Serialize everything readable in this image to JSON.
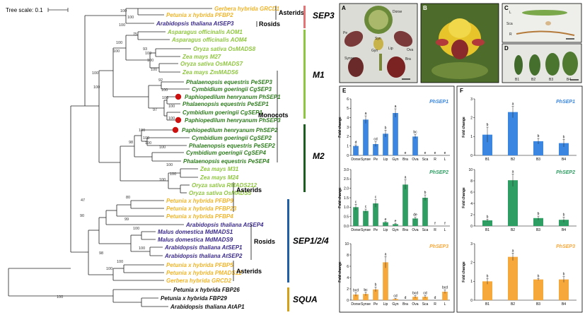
{
  "tree": {
    "scale_label": "Tree scale: 0.1",
    "taxa": [
      {
        "name": "Gerbera hybrida GRCD1",
        "group": "asterid"
      },
      {
        "name": "Petunia x hybrida PFBP2",
        "group": "asterid"
      },
      {
        "name": "Arabidopsis thaliana AtSEP3",
        "group": "rosid"
      },
      {
        "name": "Asparagus officinalis AOM1",
        "group": "monocot"
      },
      {
        "name": "Asparagus officinalis AOM4",
        "group": "monocot"
      },
      {
        "name": "Oryza sativa OsMADS8",
        "group": "monocot"
      },
      {
        "name": "Zea mays M27",
        "group": "monocot"
      },
      {
        "name": "Oryza sativa OsMADS7",
        "group": "monocot"
      },
      {
        "name": "Zea mays ZmMADS6",
        "group": "monocot"
      },
      {
        "name": "Phalaenopsis equestris PeSEP3",
        "group": "orchid"
      },
      {
        "name": "Cymbidium goeringii CgSEP3",
        "group": "orchid"
      },
      {
        "name": "Paphiopedilum henryanum PhSEP1",
        "group": "orchid",
        "highlight": true
      },
      {
        "name": "Phalaenopsis equestris PeSEP1",
        "group": "orchid"
      },
      {
        "name": "Cymbidium goeringii CgSEP1",
        "group": "orchid"
      },
      {
        "name": "Paphiopedilum henryanum PhSEP3",
        "group": "orchid",
        "highlight": true
      },
      {
        "name": "Paphiopedilum henryanum PhSEP2",
        "group": "orchid",
        "highlight": true
      },
      {
        "name": "Cymbidium goeringii CgSEP2",
        "group": "orchid"
      },
      {
        "name": "Phalaenopsis equestris PeSEP2",
        "group": "orchid"
      },
      {
        "name": "Cymbidium goeringii CgSEP4",
        "group": "orchid"
      },
      {
        "name": "Phalaenopsis equestris PeSEP4",
        "group": "orchid"
      },
      {
        "name": "Zea mays M31",
        "group": "monocot"
      },
      {
        "name": "Zea mays M24",
        "group": "monocot"
      },
      {
        "name": "Oryza sativa RMADS212",
        "group": "monocot"
      },
      {
        "name": "Oryza sativa OsMADS5",
        "group": "monocot"
      },
      {
        "name": "Petunia x hybrida PFBP9",
        "group": "asterid"
      },
      {
        "name": "Petunia x hybrida PFBP23",
        "group": "asterid"
      },
      {
        "name": "Petunia x hybrida PFBP4",
        "group": "asterid"
      },
      {
        "name": "Arabidopsis thaliana AtSEP4",
        "group": "rosid"
      },
      {
        "name": "Malus domestica MdMADS1",
        "group": "rosid"
      },
      {
        "name": "Malus domestica MdMADS9",
        "group": "rosid"
      },
      {
        "name": "Arabidopsis thaliana AtSEP1",
        "group": "rosid"
      },
      {
        "name": "Arabidopsis thaliana AtSEP2",
        "group": "rosid"
      },
      {
        "name": "Petunia x hybrida PFBP5",
        "group": "asterid"
      },
      {
        "name": "Petunia x hybrida PMADS12",
        "group": "asterid"
      },
      {
        "name": "Gerbera hybrida GRCD2",
        "group": "asterid"
      },
      {
        "name": "Petunia x hybrida FBP26",
        "group": "outgroup"
      },
      {
        "name": "Petunia x hybrida FBP29",
        "group": "outgroup"
      },
      {
        "name": "Arabidopsis thaliana AtAP1",
        "group": "outgroup"
      }
    ],
    "bootstrap": [
      "100",
      "100",
      "100",
      "75",
      "93",
      "100",
      "100",
      "100",
      "100",
      "92",
      "100",
      "100",
      "100",
      "97",
      "100",
      "100",
      "100",
      "100",
      "98",
      "100",
      "100",
      "100",
      "100",
      "100",
      "100",
      "100",
      "47",
      "80",
      "99",
      "100",
      "100",
      "100",
      "100",
      "90",
      "98",
      "100"
    ],
    "brackets": {
      "asterids1": "Asterids",
      "rosids1": "Rosids",
      "monocots": "Monocots",
      "asterids2": "Asterids",
      "rosids2": "Rosids",
      "asterids3": "Asterids"
    },
    "clades": {
      "sep3": "SEP3",
      "m1": "M1",
      "m2": "M2",
      "sep124": "SEP1/2/4",
      "squa": "SQUA"
    },
    "colors": {
      "asterid": "#f0b429",
      "rosid": "#3b2a8c",
      "monocot": "#8fc640",
      "orchid": "#2e7d1e",
      "outgroup": "#111111",
      "highlight": "#cc1111",
      "sep3": "#e57373",
      "m1": "#8fc640",
      "m2": "#1b5e20",
      "sep124": "#1f5fa8",
      "squa": "#d4a017"
    }
  },
  "photos": {
    "A": {
      "panel": "A",
      "labels": [
        "Dorse",
        "Pe",
        "Syn",
        "Gyn",
        "Lip",
        "Ova",
        "Bra",
        "Synse"
      ]
    },
    "B": {
      "panel": "B"
    },
    "C": {
      "panel": "C",
      "labels": [
        "L",
        "Sca",
        "R"
      ]
    },
    "D": {
      "panel": "D",
      "labels": [
        "B1",
        "B2",
        "B3",
        "B4"
      ]
    }
  },
  "panel_E": "E",
  "panel_F": "F",
  "chart_data": [
    {
      "panel": "E",
      "type": "bar",
      "gene": "PhSEP1",
      "ylabel": "Fold change",
      "color": "#3a86e0",
      "categories": [
        "Dorse",
        "Synse",
        "Pe",
        "Lip",
        "Gyn",
        "Bra",
        "Ova",
        "Sca",
        "R",
        "L"
      ],
      "values": [
        1.0,
        3.8,
        1.2,
        2.3,
        4.5,
        0.0,
        2.0,
        0.0,
        0.0,
        0.0
      ],
      "errors": [
        0.12,
        0.4,
        0.25,
        0.35,
        0.45,
        0,
        0.2,
        0,
        0,
        0
      ],
      "letters": [
        "d",
        "a",
        "cd",
        "b",
        "a",
        "e",
        "bc",
        "e",
        "e",
        "e"
      ],
      "ylim": [
        0,
        6
      ],
      "yticks": [
        "0",
        "1",
        "2",
        "3",
        "4",
        "5",
        "6"
      ]
    },
    {
      "panel": "E",
      "type": "bar",
      "gene": "PhSEP2",
      "ylabel": "Fold change",
      "color": "#2e9e62",
      "categories": [
        "Dorse",
        "Synse",
        "Pe",
        "Lip",
        "Gyn",
        "Bra",
        "Ova",
        "Sca",
        "R",
        "L"
      ],
      "values": [
        1.0,
        0.8,
        1.2,
        0.2,
        0.1,
        2.2,
        0.4,
        1.5,
        0.0,
        0.0
      ],
      "errors": [
        0.15,
        0.1,
        0.2,
        0.03,
        0.03,
        0.25,
        0.06,
        0.15,
        0,
        0
      ],
      "letters": [
        "c",
        "c",
        "c",
        "e",
        "e",
        "a",
        "de",
        "b",
        "f",
        "f"
      ],
      "ylim": [
        0,
        3
      ],
      "yticks": [
        "0.0",
        "0.5",
        "1.0",
        "1.5",
        "2.0",
        "2.5",
        "3.0"
      ]
    },
    {
      "panel": "E",
      "type": "bar",
      "gene": "PhSEP3",
      "ylabel": "Fold change",
      "color": "#f7a83a",
      "categories": [
        "Dorse",
        "Synse",
        "Pe",
        "Lip",
        "Gyn",
        "Bra",
        "Ova",
        "Sca",
        "R",
        "L"
      ],
      "values": [
        1.0,
        1.1,
        1.9,
        6.7,
        0.2,
        0.0,
        0.6,
        0.6,
        0.0,
        1.5
      ],
      "errors": [
        0.3,
        0.3,
        0.4,
        1.0,
        0.1,
        0,
        0.2,
        0.2,
        0,
        0.3
      ],
      "letters": [
        "bcd",
        "bc",
        "b",
        "a",
        "cd",
        "d",
        "bcd",
        "cd",
        "d",
        "bcd"
      ],
      "ylim": [
        0,
        10
      ],
      "yticks": [
        "0",
        "2",
        "4",
        "6",
        "8",
        "10"
      ]
    },
    {
      "panel": "F",
      "type": "bar",
      "gene": "PhSEP1",
      "ylabel": "Fold change",
      "color": "#3a86e0",
      "categories": [
        "B1",
        "B2",
        "B3",
        "B4"
      ],
      "values": [
        1.1,
        2.3,
        0.75,
        0.65
      ],
      "errors": [
        0.4,
        0.3,
        0.15,
        0.2
      ],
      "letters": [
        "b",
        "a",
        "b",
        "b"
      ],
      "ylim": [
        0,
        3
      ],
      "yticks": [
        "0",
        "1",
        "2",
        "3"
      ]
    },
    {
      "panel": "F",
      "type": "bar",
      "gene": "PhSEP2",
      "ylabel": "Fold change",
      "color": "#2e9e62",
      "categories": [
        "B1",
        "B2",
        "B3",
        "B4"
      ],
      "values": [
        1.0,
        8.1,
        1.4,
        1.1
      ],
      "errors": [
        0.2,
        1.1,
        0.35,
        0.45
      ],
      "letters": [
        "b",
        "a",
        "b",
        "b"
      ],
      "ylim": [
        0,
        10
      ],
      "yticks": [
        "0",
        "2",
        "4",
        "6",
        "8",
        "10"
      ]
    },
    {
      "panel": "F",
      "type": "bar",
      "gene": "PhSEP3",
      "ylabel": "Fold change",
      "color": "#f7a83a",
      "categories": [
        "B1",
        "B2",
        "B3",
        "B4"
      ],
      "values": [
        1.0,
        2.3,
        1.1,
        1.1
      ],
      "errors": [
        0.15,
        0.2,
        0.05,
        0.15
      ],
      "letters": [
        "b",
        "a",
        "b",
        "b"
      ],
      "ylim": [
        0,
        3
      ],
      "yticks": [
        "0",
        "1",
        "2",
        "3"
      ]
    }
  ]
}
